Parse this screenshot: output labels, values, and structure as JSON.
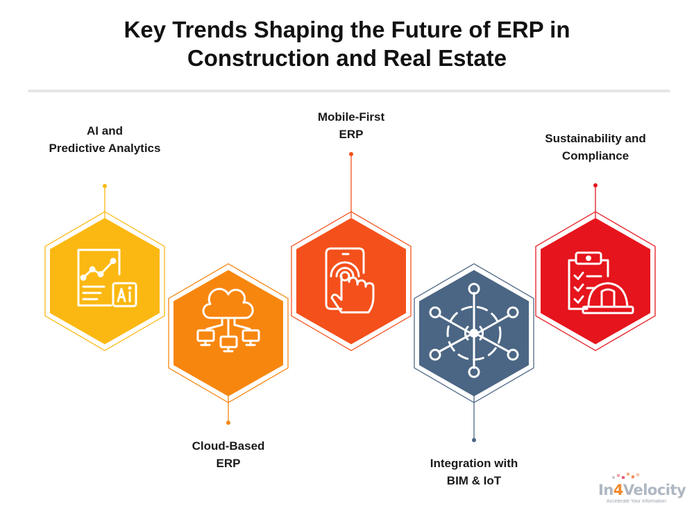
{
  "title": {
    "line1": "Key Trends Shaping the Future of ERP in",
    "line2": "Construction and Real Estate"
  },
  "trends": [
    {
      "label_lines": [
        "AI and",
        "Predictive Analytics"
      ],
      "icon": "ai-document-chart-icon",
      "color": "#fbb812",
      "label_position": "top"
    },
    {
      "label_lines": [
        "Cloud-Based",
        "ERP"
      ],
      "icon": "cloud-network-icon",
      "color": "#f7860f",
      "label_position": "bottom"
    },
    {
      "label_lines": [
        "Mobile-First",
        "ERP"
      ],
      "icon": "mobile-touch-icon",
      "color": "#f4501b",
      "label_position": "top"
    },
    {
      "label_lines": [
        "Integration with",
        "BIM & IoT"
      ],
      "icon": "iot-network-icon",
      "color": "#4b6684",
      "label_position": "bottom"
    },
    {
      "label_lines": [
        "Sustainability and",
        "Compliance"
      ],
      "icon": "clipboard-hardhat-icon",
      "color": "#e6141c",
      "label_position": "top"
    }
  ],
  "logo": {
    "prefix": "In",
    "number": "4",
    "suffix": "Velocity",
    "tagline": "Accelerate Your Information"
  }
}
